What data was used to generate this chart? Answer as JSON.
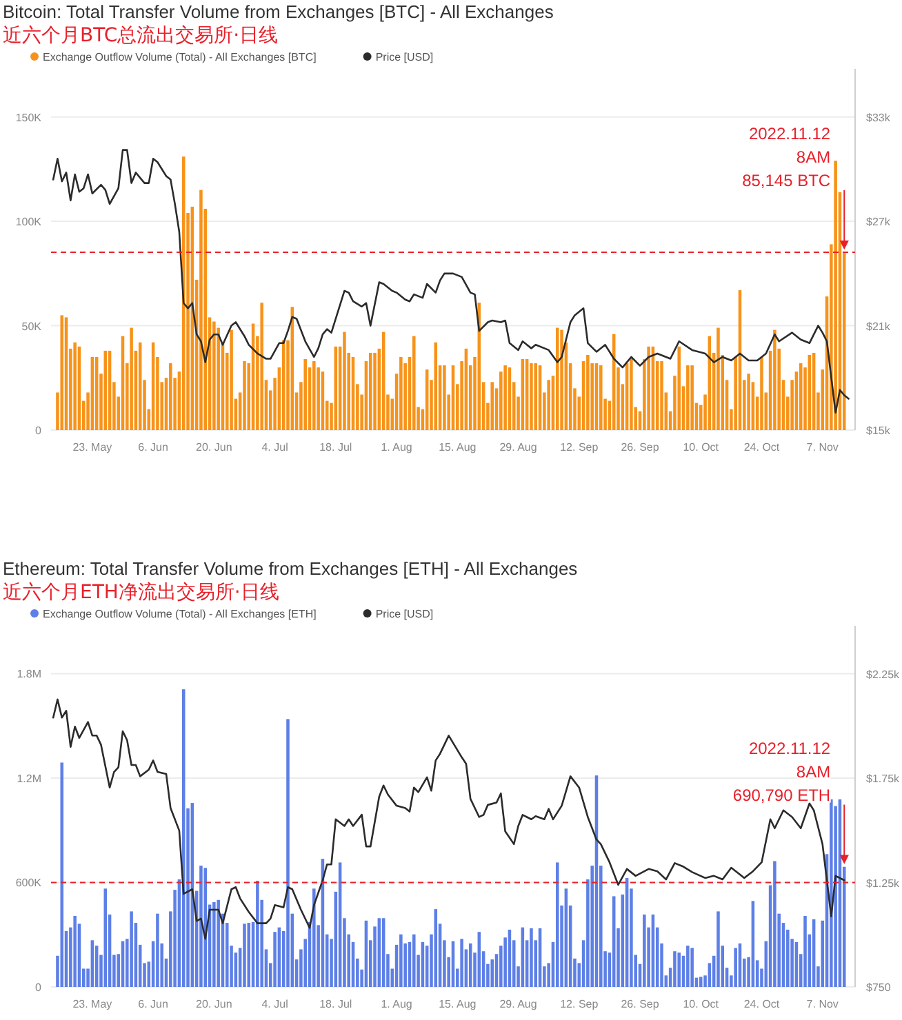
{
  "chart_data": [
    {
      "type": "bar",
      "title": "Bitcoin: Total Transfer Volume from Exchanges [BTC] - All Exchanges",
      "subtitle": "近六个月BTC总流出交易所·日线",
      "legend": "top left",
      "grid": "y",
      "xlim": [
        "2022-05-13T12:00",
        "2022-11-14T12:00"
      ],
      "xticks": [
        {
          "value": "2022-05-23",
          "label": "23. May"
        },
        {
          "value": "2022-06-06",
          "label": "6. Jun"
        },
        {
          "value": "2022-06-20",
          "label": "20. Jun"
        },
        {
          "value": "2022-07-04",
          "label": "4. Jul"
        },
        {
          "value": "2022-07-18",
          "label": "18. Jul"
        },
        {
          "value": "2022-08-01",
          "label": "1. Aug"
        },
        {
          "value": "2022-08-15",
          "label": "15. Aug"
        },
        {
          "value": "2022-08-29",
          "label": "29. Aug"
        },
        {
          "value": "2022-09-12",
          "label": "12. Sep"
        },
        {
          "value": "2022-09-26",
          "label": "26. Sep"
        },
        {
          "value": "2022-10-10",
          "label": "10. Oct"
        },
        {
          "value": "2022-10-24",
          "label": "24. Oct"
        },
        {
          "value": "2022-11-07",
          "label": "7. Nov"
        }
      ],
      "ylim": [
        0,
        173000
      ],
      "yticks": [
        0,
        {
          "value": 50000,
          "label": "50K"
        },
        {
          "value": 100000,
          "label": "100K"
        },
        {
          "value": 150000,
          "label": "150K"
        }
      ],
      "y2lim": [
        15000,
        35760
      ],
      "y2ticks": [
        {
          "value": 15000,
          "label": "$15k"
        },
        {
          "value": 21000,
          "label": "$21k"
        },
        {
          "value": 27000,
          "label": "$27k"
        },
        {
          "value": 33000,
          "label": "$33k"
        }
      ],
      "x": [
        "2022-05-15",
        "2022-05-16",
        "2022-05-17",
        "2022-05-18",
        "2022-05-19",
        "2022-05-20",
        "2022-05-21",
        "2022-05-22",
        "2022-05-23",
        "2022-05-24",
        "2022-05-25",
        "2022-05-26",
        "2022-05-27",
        "2022-05-28",
        "2022-05-29",
        "2022-05-30",
        "2022-05-31",
        "2022-06-01",
        "2022-06-02",
        "2022-06-03",
        "2022-06-04",
        "2022-06-05",
        "2022-06-06",
        "2022-06-07",
        "2022-06-08",
        "2022-06-09",
        "2022-06-10",
        "2022-06-11",
        "2022-06-12",
        "2022-06-13",
        "2022-06-14",
        "2022-06-15",
        "2022-06-16",
        "2022-06-17",
        "2022-06-18",
        "2022-06-19",
        "2022-06-20",
        "2022-06-21",
        "2022-06-22",
        "2022-06-23",
        "2022-06-24",
        "2022-06-25",
        "2022-06-26",
        "2022-06-27",
        "2022-06-28",
        "2022-06-29",
        "2022-06-30",
        "2022-07-01",
        "2022-07-02",
        "2022-07-03",
        "2022-07-04",
        "2022-07-05",
        "2022-07-06",
        "2022-07-07",
        "2022-07-08",
        "2022-07-09",
        "2022-07-10",
        "2022-07-11",
        "2022-07-12",
        "2022-07-13",
        "2022-07-14",
        "2022-07-15",
        "2022-07-16",
        "2022-07-17",
        "2022-07-18",
        "2022-07-19",
        "2022-07-20",
        "2022-07-21",
        "2022-07-22",
        "2022-07-23",
        "2022-07-24",
        "2022-07-25",
        "2022-07-26",
        "2022-07-27",
        "2022-07-28",
        "2022-07-29",
        "2022-07-30",
        "2022-07-31",
        "2022-08-01",
        "2022-08-02",
        "2022-08-03",
        "2022-08-04",
        "2022-08-05",
        "2022-08-06",
        "2022-08-07",
        "2022-08-08",
        "2022-08-09",
        "2022-08-10",
        "2022-08-11",
        "2022-08-12",
        "2022-08-13",
        "2022-08-14",
        "2022-08-15",
        "2022-08-16",
        "2022-08-17",
        "2022-08-18",
        "2022-08-19",
        "2022-08-20",
        "2022-08-21",
        "2022-08-22",
        "2022-08-23",
        "2022-08-24",
        "2022-08-25",
        "2022-08-26",
        "2022-08-27",
        "2022-08-28",
        "2022-08-29",
        "2022-08-30",
        "2022-08-31",
        "2022-09-01",
        "2022-09-02",
        "2022-09-03",
        "2022-09-04",
        "2022-09-05",
        "2022-09-06",
        "2022-09-07",
        "2022-09-08",
        "2022-09-09",
        "2022-09-10",
        "2022-09-11",
        "2022-09-12",
        "2022-09-13",
        "2022-09-14",
        "2022-09-15",
        "2022-09-16",
        "2022-09-17",
        "2022-09-18",
        "2022-09-19",
        "2022-09-20",
        "2022-09-21",
        "2022-09-22",
        "2022-09-23",
        "2022-09-24",
        "2022-09-25",
        "2022-09-26",
        "2022-09-27",
        "2022-09-28",
        "2022-09-29",
        "2022-09-30",
        "2022-10-01",
        "2022-10-02",
        "2022-10-03",
        "2022-10-04",
        "2022-10-05",
        "2022-10-06",
        "2022-10-07",
        "2022-10-08",
        "2022-10-09",
        "2022-10-10",
        "2022-10-11",
        "2022-10-12",
        "2022-10-13",
        "2022-10-14",
        "2022-10-15",
        "2022-10-16",
        "2022-10-17",
        "2022-10-18",
        "2022-10-19",
        "2022-10-20",
        "2022-10-21",
        "2022-10-22",
        "2022-10-23",
        "2022-10-24",
        "2022-10-25",
        "2022-10-26",
        "2022-10-27",
        "2022-10-28",
        "2022-10-29",
        "2022-10-30",
        "2022-10-31",
        "2022-11-01",
        "2022-11-02",
        "2022-11-03",
        "2022-11-04",
        "2022-11-05",
        "2022-11-06",
        "2022-11-07",
        "2022-11-08",
        "2022-11-09",
        "2022-11-10",
        "2022-11-11",
        "2022-11-12"
      ],
      "series": [
        {
          "name": "Exchange Outflow Volume (Total) - All Exchanges [BTC]",
          "color": "#f7931a",
          "values": [
            18000,
            55000,
            54000,
            39000,
            42000,
            40000,
            14000,
            18000,
            35000,
            35000,
            27000,
            38000,
            38000,
            23000,
            16000,
            45000,
            32000,
            49000,
            38000,
            42000,
            24000,
            10000,
            42000,
            35000,
            23000,
            25000,
            32000,
            25000,
            28000,
            131000,
            104000,
            107000,
            72000,
            115000,
            106000,
            54000,
            52000,
            49000,
            42000,
            37000,
            48000,
            15000,
            18000,
            33000,
            32000,
            51000,
            45000,
            61000,
            24000,
            19000,
            25000,
            30000,
            43000,
            43000,
            59000,
            18000,
            23000,
            34000,
            30000,
            33000,
            30000,
            28000,
            14000,
            13000,
            40000,
            40000,
            47000,
            37000,
            35000,
            22000,
            17000,
            33000,
            37000,
            37000,
            39000,
            47000,
            17000,
            15000,
            27000,
            35000,
            32000,
            35000,
            45000,
            11000,
            10000,
            29000,
            24000,
            42000,
            31000,
            31000,
            17000,
            31000,
            22000,
            33000,
            39000,
            31000,
            35000,
            61000,
            23000,
            13000,
            23000,
            20000,
            28000,
            31000,
            30000,
            23000,
            16000,
            34000,
            34000,
            32000,
            32000,
            31000,
            18000,
            24000,
            26000,
            49000,
            48000,
            42000,
            32000,
            20000,
            16000,
            33000,
            36000,
            32000,
            32000,
            31000,
            15000,
            14000,
            46000,
            30000,
            22000,
            32000,
            35000,
            11000,
            9000,
            34000,
            40000,
            40000,
            33000,
            33000,
            18000,
            9000,
            26000,
            40000,
            21000,
            31000,
            31000,
            13000,
            12000,
            17000,
            45000,
            37000,
            49000,
            36000,
            24000,
            10000,
            35000,
            67000,
            24000,
            27000,
            23000,
            16000,
            35000,
            18000,
            38000,
            48000,
            39000,
            24000,
            16000,
            24000,
            28000,
            32000,
            30000,
            36000,
            37000,
            18000,
            29000,
            64000,
            89000,
            129000,
            114000,
            85000
          ]
        },
        {
          "name": "Price [USD]",
          "type": "line",
          "axis": "y2",
          "color": "#2b2b2b",
          "x": [
            "2022-05-14",
            "2022-05-15",
            "2022-05-16",
            "2022-05-17",
            "2022-05-18",
            "2022-05-19",
            "2022-05-20",
            "2022-05-21",
            "2022-05-22",
            "2022-05-23",
            "2022-05-25",
            "2022-05-26",
            "2022-05-27",
            "2022-05-29",
            "2022-05-30",
            "2022-05-31",
            "2022-06-01",
            "2022-06-02",
            "2022-06-04",
            "2022-06-05",
            "2022-06-06",
            "2022-06-07",
            "2022-06-09",
            "2022-06-10",
            "2022-06-11",
            "2022-06-12",
            "2022-06-13",
            "2022-06-14",
            "2022-06-15",
            "2022-06-16",
            "2022-06-17",
            "2022-06-18",
            "2022-06-19",
            "2022-06-20",
            "2022-06-21",
            "2022-06-22",
            "2022-06-24",
            "2022-06-25",
            "2022-06-27",
            "2022-06-28",
            "2022-06-30",
            "2022-07-02",
            "2022-07-03",
            "2022-07-05",
            "2022-07-06",
            "2022-07-07",
            "2022-07-08",
            "2022-07-09",
            "2022-07-11",
            "2022-07-13",
            "2022-07-14",
            "2022-07-15",
            "2022-07-16",
            "2022-07-17",
            "2022-07-20",
            "2022-07-21",
            "2022-07-22",
            "2022-07-24",
            "2022-07-25",
            "2022-07-26",
            "2022-07-28",
            "2022-07-29",
            "2022-07-31",
            "2022-08-01",
            "2022-08-03",
            "2022-08-04",
            "2022-08-05",
            "2022-08-07",
            "2022-08-08",
            "2022-08-10",
            "2022-08-11",
            "2022-08-12",
            "2022-08-14",
            "2022-08-16",
            "2022-08-18",
            "2022-08-19",
            "2022-08-20",
            "2022-08-22",
            "2022-08-23",
            "2022-08-25",
            "2022-08-26",
            "2022-08-27",
            "2022-08-29",
            "2022-08-30",
            "2022-09-01",
            "2022-09-02",
            "2022-09-05",
            "2022-09-07",
            "2022-09-08",
            "2022-09-10",
            "2022-09-11",
            "2022-09-13",
            "2022-09-14",
            "2022-09-16",
            "2022-09-18",
            "2022-09-20",
            "2022-09-22",
            "2022-09-24",
            "2022-09-26",
            "2022-09-28",
            "2022-09-30",
            "2022-10-03",
            "2022-10-05",
            "2022-10-08",
            "2022-10-11",
            "2022-10-13",
            "2022-10-15",
            "2022-10-17",
            "2022-10-19",
            "2022-10-21",
            "2022-10-23",
            "2022-10-25",
            "2022-10-27",
            "2022-10-28",
            "2022-10-31",
            "2022-11-02",
            "2022-11-04",
            "2022-11-06",
            "2022-11-07",
            "2022-11-08",
            "2022-11-10",
            "2022-11-11",
            "2022-11-12",
            "2022-11-13"
          ],
          "values": [
            29400,
            30600,
            29300,
            29800,
            28200,
            29700,
            28700,
            28900,
            29700,
            28600,
            29100,
            28800,
            28000,
            28900,
            31100,
            31100,
            29200,
            29800,
            29200,
            29200,
            30600,
            30400,
            29600,
            29400,
            28000,
            26400,
            22300,
            22000,
            22300,
            20500,
            20100,
            18900,
            20200,
            20500,
            20500,
            19900,
            21000,
            21200,
            20400,
            19900,
            19400,
            19100,
            19100,
            20000,
            20000,
            20700,
            21500,
            21400,
            20100,
            19200,
            19700,
            20500,
            20800,
            20600,
            23000,
            22900,
            22400,
            22100,
            22300,
            21000,
            23500,
            23400,
            23000,
            22900,
            22500,
            22400,
            22800,
            22600,
            23400,
            22900,
            23600,
            24000,
            24000,
            23800,
            22900,
            22800,
            20700,
            21200,
            21300,
            21200,
            21300,
            20000,
            19600,
            20100,
            19700,
            19900,
            19600,
            18900,
            19200,
            21200,
            21600,
            22000,
            20000,
            19500,
            19900,
            19100,
            18600,
            19200,
            18700,
            19200,
            19400,
            19100,
            20100,
            19600,
            19400,
            18900,
            19200,
            19000,
            19400,
            19000,
            19000,
            19400,
            20500,
            20100,
            20600,
            20200,
            20000,
            21000,
            20600,
            20100,
            16000,
            17300,
            17000,
            16800
          ]
        }
      ],
      "ref_lines": [
        {
          "axis": "y",
          "value": 85145,
          "color": "#e8202a",
          "line_style": "dashed"
        }
      ],
      "annotations": [
        {
          "text": "2022.11.12\n8AM\n85,145 BTC",
          "x": "2022-11-12",
          "y": 85145
        }
      ]
    },
    {
      "type": "bar",
      "title": "Ethereum: Total Transfer Volume from Exchanges [ETH] - All Exchanges",
      "subtitle": "近六个月ETH净流出交易所·日线",
      "legend": "top left",
      "grid": "y",
      "xlim": [
        "2022-05-13T12:00",
        "2022-11-14T12:00"
      ],
      "xticks": [
        {
          "value": "2022-05-23",
          "label": "23. May"
        },
        {
          "value": "2022-06-06",
          "label": "6. Jun"
        },
        {
          "value": "2022-06-20",
          "label": "20. Jun"
        },
        {
          "value": "2022-07-04",
          "label": "4. Jul"
        },
        {
          "value": "2022-07-18",
          "label": "18. Jul"
        },
        {
          "value": "2022-08-01",
          "label": "1. Aug"
        },
        {
          "value": "2022-08-15",
          "label": "15. Aug"
        },
        {
          "value": "2022-08-29",
          "label": "29. Aug"
        },
        {
          "value": "2022-09-12",
          "label": "12. Sep"
        },
        {
          "value": "2022-09-26",
          "label": "26. Sep"
        },
        {
          "value": "2022-10-10",
          "label": "10. Oct"
        },
        {
          "value": "2022-10-24",
          "label": "24. Oct"
        },
        {
          "value": "2022-11-07",
          "label": "7. Nov"
        }
      ],
      "ylim": [
        0,
        2075000
      ],
      "yticks": [
        0,
        {
          "value": 600000,
          "label": "600K"
        },
        {
          "value": 1200000,
          "label": "1.2M"
        },
        {
          "value": 1800000,
          "label": "1.8M"
        }
      ],
      "y2lim": [
        750,
        2480
      ],
      "y2ticks": [
        {
          "value": 750,
          "label": "$750"
        },
        {
          "value": 1250,
          "label": "$1.25k"
        },
        {
          "value": 1750,
          "label": "$1.75k"
        },
        {
          "value": 2250,
          "label": "$2.25k"
        }
      ],
      "x": [
        "2022-05-15",
        "2022-05-16",
        "2022-05-17",
        "2022-05-18",
        "2022-05-19",
        "2022-05-20",
        "2022-05-21",
        "2022-05-22",
        "2022-05-23",
        "2022-05-24",
        "2022-05-25",
        "2022-05-26",
        "2022-05-27",
        "2022-05-28",
        "2022-05-29",
        "2022-05-30",
        "2022-05-31",
        "2022-06-01",
        "2022-06-02",
        "2022-06-03",
        "2022-06-04",
        "2022-06-05",
        "2022-06-06",
        "2022-06-07",
        "2022-06-08",
        "2022-06-09",
        "2022-06-10",
        "2022-06-11",
        "2022-06-12",
        "2022-06-13",
        "2022-06-14",
        "2022-06-15",
        "2022-06-16",
        "2022-06-17",
        "2022-06-18",
        "2022-06-19",
        "2022-06-20",
        "2022-06-21",
        "2022-06-22",
        "2022-06-23",
        "2022-06-24",
        "2022-06-25",
        "2022-06-26",
        "2022-06-27",
        "2022-06-28",
        "2022-06-29",
        "2022-06-30",
        "2022-07-01",
        "2022-07-02",
        "2022-07-03",
        "2022-07-04",
        "2022-07-05",
        "2022-07-06",
        "2022-07-07",
        "2022-07-08",
        "2022-07-09",
        "2022-07-10",
        "2022-07-11",
        "2022-07-12",
        "2022-07-13",
        "2022-07-14",
        "2022-07-15",
        "2022-07-16",
        "2022-07-17",
        "2022-07-18",
        "2022-07-19",
        "2022-07-20",
        "2022-07-21",
        "2022-07-22",
        "2022-07-23",
        "2022-07-24",
        "2022-07-25",
        "2022-07-26",
        "2022-07-27",
        "2022-07-28",
        "2022-07-29",
        "2022-07-30",
        "2022-07-31",
        "2022-08-01",
        "2022-08-02",
        "2022-08-03",
        "2022-08-04",
        "2022-08-05",
        "2022-08-06",
        "2022-08-07",
        "2022-08-08",
        "2022-08-09",
        "2022-08-10",
        "2022-08-11",
        "2022-08-12",
        "2022-08-13",
        "2022-08-14",
        "2022-08-15",
        "2022-08-16",
        "2022-08-17",
        "2022-08-18",
        "2022-08-19",
        "2022-08-20",
        "2022-08-21",
        "2022-08-22",
        "2022-08-23",
        "2022-08-24",
        "2022-08-25",
        "2022-08-26",
        "2022-08-27",
        "2022-08-28",
        "2022-08-29",
        "2022-08-30",
        "2022-08-31",
        "2022-09-01",
        "2022-09-02",
        "2022-09-03",
        "2022-09-04",
        "2022-09-05",
        "2022-09-06",
        "2022-09-07",
        "2022-09-08",
        "2022-09-09",
        "2022-09-10",
        "2022-09-11",
        "2022-09-12",
        "2022-09-13",
        "2022-09-14",
        "2022-09-15",
        "2022-09-16",
        "2022-09-17",
        "2022-09-18",
        "2022-09-19",
        "2022-09-20",
        "2022-09-21",
        "2022-09-22",
        "2022-09-23",
        "2022-09-24",
        "2022-09-25",
        "2022-09-26",
        "2022-09-27",
        "2022-09-28",
        "2022-09-29",
        "2022-09-30",
        "2022-10-01",
        "2022-10-02",
        "2022-10-03",
        "2022-10-04",
        "2022-10-05",
        "2022-10-06",
        "2022-10-07",
        "2022-10-08",
        "2022-10-09",
        "2022-10-10",
        "2022-10-11",
        "2022-10-12",
        "2022-10-13",
        "2022-10-14",
        "2022-10-15",
        "2022-10-16",
        "2022-10-17",
        "2022-10-18",
        "2022-10-19",
        "2022-10-20",
        "2022-10-21",
        "2022-10-22",
        "2022-10-23",
        "2022-10-24",
        "2022-10-25",
        "2022-10-26",
        "2022-10-27",
        "2022-10-28",
        "2022-10-29",
        "2022-10-30",
        "2022-10-31",
        "2022-11-01",
        "2022-11-02",
        "2022-11-03",
        "2022-11-04",
        "2022-11-05",
        "2022-11-06",
        "2022-11-07",
        "2022-11-08",
        "2022-11-09",
        "2022-11-10",
        "2022-11-11",
        "2022-11-12"
      ],
      "series": [
        {
          "name": "Exchange Outflow Volume (Total) - All Exchanges [ETH]",
          "color": "#5d7fe6",
          "values": [
            179000,
            1289000,
            321000,
            342000,
            408000,
            363000,
            105000,
            105000,
            268000,
            237000,
            184000,
            565000,
            416000,
            184000,
            189000,
            263000,
            276000,
            434000,
            368000,
            242000,
            137000,
            145000,
            263000,
            421000,
            250000,
            163000,
            434000,
            558000,
            618000,
            1710000,
            1026000,
            1057000,
            552000,
            697000,
            684000,
            473000,
            487000,
            500000,
            421000,
            368000,
            237000,
            197000,
            224000,
            363000,
            368000,
            373000,
            610000,
            500000,
            216000,
            137000,
            316000,
            342000,
            321000,
            1539000,
            421000,
            158000,
            216000,
            276000,
            373000,
            565000,
            355000,
            736000,
            302000,
            276000,
            547000,
            715000,
            395000,
            302000,
            258000,
            163000,
            100000,
            381000,
            268000,
            347000,
            395000,
            395000,
            189000,
            105000,
            242000,
            302000,
            250000,
            258000,
            302000,
            184000,
            258000,
            237000,
            302000,
            447000,
            363000,
            268000,
            171000,
            263000,
            105000,
            276000,
            216000,
            250000,
            197000,
            316000,
            205000,
            132000,
            158000,
            189000,
            237000,
            284000,
            329000,
            268000,
            118000,
            342000,
            268000,
            337000,
            268000,
            337000,
            118000,
            137000,
            258000,
            715000,
            468000,
            565000,
            468000,
            163000,
            137000,
            268000,
            618000,
            697000,
            1215000,
            697000,
            205000,
            197000,
            521000,
            337000,
            531000,
            626000,
            565000,
            184000,
            132000,
            416000,
            342000,
            416000,
            342000,
            250000,
            66000,
            110000,
            205000,
            197000,
            179000,
            237000,
            224000,
            53000,
            58000,
            66000,
            137000,
            179000,
            434000,
            237000,
            110000,
            66000,
            224000,
            250000,
            163000,
            171000,
            494000,
            153000,
            105000,
            263000,
            584000,
            723000,
            421000,
            368000,
            329000,
            276000,
            258000,
            189000,
            408000,
            302000,
            389000,
            118000,
            381000,
            763000,
            1078000,
            1039000,
            1078000,
            690000
          ]
        },
        {
          "name": "Price [USD]",
          "type": "line",
          "axis": "y2",
          "color": "#2b2b2b",
          "x": [
            "2022-05-14",
            "2022-05-15",
            "2022-05-16",
            "2022-05-17",
            "2022-05-18",
            "2022-05-19",
            "2022-05-20",
            "2022-05-22",
            "2022-05-23",
            "2022-05-24",
            "2022-05-25",
            "2022-05-27",
            "2022-05-28",
            "2022-05-29",
            "2022-05-30",
            "2022-05-31",
            "2022-06-01",
            "2022-06-02",
            "2022-06-03",
            "2022-06-05",
            "2022-06-06",
            "2022-06-07",
            "2022-06-09",
            "2022-06-10",
            "2022-06-12",
            "2022-06-13",
            "2022-06-14",
            "2022-06-15",
            "2022-06-16",
            "2022-06-17",
            "2022-06-18",
            "2022-06-19",
            "2022-06-21",
            "2022-06-22",
            "2022-06-24",
            "2022-06-25",
            "2022-06-26",
            "2022-06-28",
            "2022-06-30",
            "2022-07-02",
            "2022-07-03",
            "2022-07-04",
            "2022-07-06",
            "2022-07-07",
            "2022-07-08",
            "2022-07-10",
            "2022-07-12",
            "2022-07-13",
            "2022-07-15",
            "2022-07-16",
            "2022-07-17",
            "2022-07-18",
            "2022-07-20",
            "2022-07-21",
            "2022-07-22",
            "2022-07-24",
            "2022-07-25",
            "2022-07-26",
            "2022-07-28",
            "2022-07-29",
            "2022-07-30",
            "2022-08-01",
            "2022-08-03",
            "2022-08-04",
            "2022-08-05",
            "2022-08-06",
            "2022-08-08",
            "2022-08-09",
            "2022-08-10",
            "2022-08-11",
            "2022-08-13",
            "2022-08-16",
            "2022-08-17",
            "2022-08-18",
            "2022-08-20",
            "2022-08-21",
            "2022-08-22",
            "2022-08-24",
            "2022-08-25",
            "2022-08-26",
            "2022-08-28",
            "2022-08-29",
            "2022-08-30",
            "2022-09-01",
            "2022-09-02",
            "2022-09-04",
            "2022-09-05",
            "2022-09-06",
            "2022-09-08",
            "2022-09-10",
            "2022-09-12",
            "2022-09-14",
            "2022-09-16",
            "2022-09-17",
            "2022-09-19",
            "2022-09-21",
            "2022-09-23",
            "2022-09-25",
            "2022-09-28",
            "2022-09-30",
            "2022-10-02",
            "2022-10-04",
            "2022-10-06",
            "2022-10-08",
            "2022-10-11",
            "2022-10-13",
            "2022-10-15",
            "2022-10-17",
            "2022-10-20",
            "2022-10-22",
            "2022-10-24",
            "2022-10-26",
            "2022-10-27",
            "2022-10-29",
            "2022-10-31",
            "2022-11-02",
            "2022-11-04",
            "2022-11-05",
            "2022-11-07",
            "2022-11-09",
            "2022-11-10",
            "2022-11-12"
          ],
          "values": [
            2040,
            2127,
            2040,
            2073,
            1900,
            1997,
            1943,
            2019,
            1954,
            1954,
            1910,
            1705,
            1780,
            1802,
            1975,
            1932,
            1813,
            1813,
            1759,
            1791,
            1835,
            1780,
            1770,
            1607,
            1499,
            1196,
            1207,
            1218,
            1066,
            1077,
            980,
            1120,
            1120,
            1055,
            1218,
            1228,
            1174,
            1109,
            1055,
            1055,
            1077,
            1142,
            1131,
            1228,
            1218,
            1120,
            1033,
            1142,
            1261,
            1337,
            1337,
            1553,
            1521,
            1553,
            1521,
            1575,
            1423,
            1423,
            1661,
            1715,
            1672,
            1618,
            1607,
            1590,
            1705,
            1683,
            1754,
            1690,
            1835,
            1867,
            1954,
            1850,
            1819,
            1651,
            1564,
            1574,
            1622,
            1633,
            1677,
            1495,
            1434,
            1521,
            1574,
            1553,
            1568,
            1553,
            1603,
            1553,
            1618,
            1759,
            1705,
            1564,
            1456,
            1434,
            1347,
            1239,
            1315,
            1282,
            1315,
            1304,
            1265,
            1343,
            1326,
            1300,
            1272,
            1282,
            1265,
            1321,
            1272,
            1304,
            1347,
            1553,
            1510,
            1596,
            1564,
            1510,
            1629,
            1596,
            1434,
            1088,
            1282,
            1261
          ]
        }
      ],
      "ref_lines": [
        {
          "axis": "y",
          "value": 600000,
          "color": "#e8202a",
          "line_style": "dashed"
        }
      ],
      "annotations": [
        {
          "text": "2022.11.12\n8AM\n690,790 ETH",
          "x": "2022-11-12",
          "y": 690790
        }
      ]
    }
  ]
}
